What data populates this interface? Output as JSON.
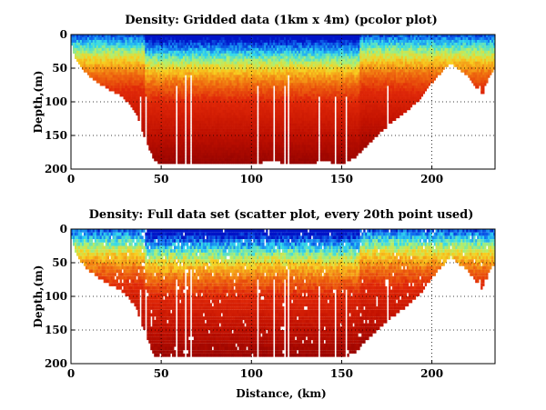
{
  "chart_data": [
    {
      "type": "heatmap",
      "title": "Density: Gridded data (1km x 4m) (pcolor plot)",
      "xlabel": "",
      "ylabel": "Depth,(m)",
      "xlim": [
        0,
        235
      ],
      "ylim": [
        200,
        0
      ],
      "y_reversed": true,
      "xticks": [
        0,
        50,
        100,
        150,
        200
      ],
      "yticks": [
        0,
        50,
        100,
        150,
        200
      ],
      "grid": true,
      "colormap": "jet",
      "colors": {
        "surface_low": "#0010c8",
        "mid": "#2ad4f0",
        "upper": "#f0e020",
        "body": "#e03010",
        "deep": "#8c0000"
      },
      "bottom_profile": {
        "x": [
          0,
          2,
          5,
          10,
          15,
          20,
          25,
          30,
          35,
          38,
          42,
          46,
          50,
          60,
          80,
          100,
          110,
          120,
          130,
          140,
          150,
          158,
          165,
          175,
          185,
          195,
          200,
          205,
          210,
          215,
          220,
          225,
          228,
          232,
          235
        ],
        "depth": [
          10,
          30,
          45,
          60,
          70,
          78,
          85,
          95,
          110,
          130,
          160,
          185,
          192,
          192,
          192,
          192,
          185,
          190,
          192,
          185,
          192,
          180,
          160,
          135,
          115,
          90,
          70,
          55,
          40,
          50,
          60,
          78,
          88,
          60,
          50
        ]
      }
    },
    {
      "type": "scatter",
      "title": "Density: Full data set (scatter plot, every 20th point used)",
      "xlabel": "Distance, (km)",
      "ylabel": "Depth,(m)",
      "xlim": [
        0,
        235
      ],
      "ylim": [
        200,
        0
      ],
      "y_reversed": true,
      "xticks": [
        0,
        50,
        100,
        150,
        200
      ],
      "yticks": [
        0,
        50,
        100,
        150,
        200
      ],
      "grid": true,
      "colormap": "jet",
      "colors": {
        "surface_low": "#0010c8",
        "mid": "#2ad4f0",
        "upper": "#f0e020",
        "body": "#e03010",
        "deep": "#8c0000"
      },
      "bottom_profile": {
        "x": [
          0,
          2,
          5,
          10,
          15,
          20,
          25,
          30,
          35,
          38,
          42,
          46,
          50,
          60,
          80,
          100,
          110,
          120,
          130,
          140,
          150,
          158,
          165,
          175,
          185,
          195,
          200,
          205,
          210,
          215,
          220,
          225,
          228,
          232,
          235
        ],
        "depth": [
          10,
          30,
          45,
          60,
          70,
          78,
          85,
          95,
          110,
          130,
          160,
          185,
          190,
          190,
          190,
          190,
          185,
          190,
          190,
          185,
          190,
          180,
          160,
          135,
          115,
          90,
          70,
          55,
          40,
          50,
          60,
          78,
          88,
          60,
          50
        ]
      }
    }
  ]
}
